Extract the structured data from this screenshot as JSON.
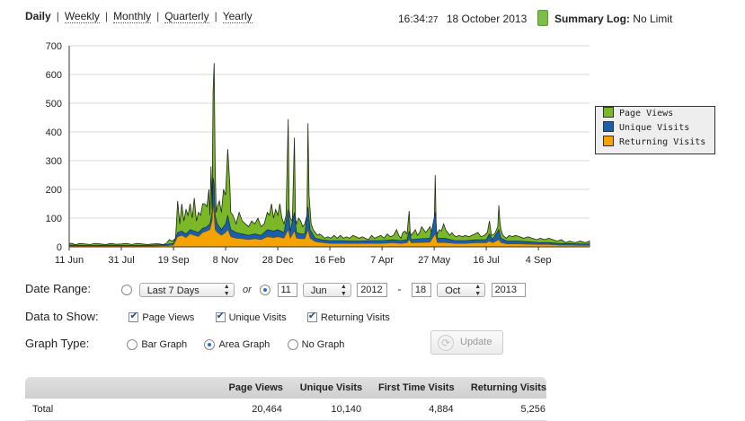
{
  "nav": {
    "periods": [
      {
        "label": "Daily",
        "active": true
      },
      {
        "label": "Weekly"
      },
      {
        "label": "Monthly"
      },
      {
        "label": "Quarterly"
      },
      {
        "label": "Yearly"
      }
    ],
    "separator": "|"
  },
  "status": {
    "time_hm": "16:34:",
    "time_sec": "27",
    "date": "18 October 2013",
    "log_label": "Summary Log:",
    "log_value": "No Limit",
    "log_indicator_color": "#7bbf4a"
  },
  "chart_data": {
    "type": "area",
    "ylim": [
      0,
      700
    ],
    "yticks": [
      "0",
      "100",
      "200",
      "300",
      "400",
      "500",
      "600",
      "700"
    ],
    "xticks": [
      "11 Jun",
      "31 Jul",
      "19 Sep",
      "8 Nov",
      "28 Dec",
      "16 Feb",
      "7 Apr",
      "27 May",
      "16 Jul",
      "4 Sep"
    ],
    "x_start": "2012-06-11",
    "x_end": "2013-10-18",
    "series": [
      {
        "name": "Page Views",
        "color": "#7ab828"
      },
      {
        "name": "Unique Visits",
        "color": "#1a5fa8"
      },
      {
        "name": "Returning Visits",
        "color": "#f5a300"
      }
    ],
    "page_views": [
      [
        0,
        12
      ],
      [
        3,
        12
      ],
      [
        6,
        7
      ],
      [
        10,
        12
      ],
      [
        15,
        10
      ],
      [
        20,
        8
      ],
      [
        25,
        12
      ],
      [
        30,
        10
      ],
      [
        35,
        8
      ],
      [
        40,
        12
      ],
      [
        45,
        9
      ],
      [
        50,
        10
      ],
      [
        55,
        12
      ],
      [
        60,
        8
      ],
      [
        65,
        12
      ],
      [
        70,
        10
      ],
      [
        75,
        8
      ],
      [
        80,
        10
      ],
      [
        85,
        11
      ],
      [
        90,
        8
      ],
      [
        93,
        12
      ],
      [
        96,
        25
      ],
      [
        99,
        20
      ],
      [
        102,
        30
      ],
      [
        104,
        160
      ],
      [
        106,
        80
      ],
      [
        108,
        150
      ],
      [
        110,
        90
      ],
      [
        112,
        130
      ],
      [
        114,
        110
      ],
      [
        116,
        150
      ],
      [
        118,
        100
      ],
      [
        120,
        170
      ],
      [
        122,
        90
      ],
      [
        124,
        120
      ],
      [
        126,
        110
      ],
      [
        128,
        150
      ],
      [
        130,
        150
      ],
      [
        132,
        140
      ],
      [
        134,
        200
      ],
      [
        135,
        110
      ],
      [
        136,
        280
      ],
      [
        137,
        130
      ],
      [
        138,
        540
      ],
      [
        139,
        640
      ],
      [
        140,
        280
      ],
      [
        141,
        120
      ],
      [
        142,
        140
      ],
      [
        144,
        160
      ],
      [
        146,
        120
      ],
      [
        148,
        200
      ],
      [
        150,
        180
      ],
      [
        152,
        340
      ],
      [
        154,
        220
      ],
      [
        155,
        120
      ],
      [
        157,
        110
      ],
      [
        160,
        80
      ],
      [
        163,
        120
      ],
      [
        166,
        90
      ],
      [
        169,
        80
      ],
      [
        172,
        70
      ],
      [
        175,
        90
      ],
      [
        178,
        80
      ],
      [
        181,
        100
      ],
      [
        184,
        70
      ],
      [
        187,
        80
      ],
      [
        190,
        120
      ],
      [
        192,
        110
      ],
      [
        194,
        150
      ],
      [
        196,
        100
      ],
      [
        198,
        130
      ],
      [
        200,
        110
      ],
      [
        202,
        150
      ],
      [
        204,
        100
      ],
      [
        206,
        80
      ],
      [
        208,
        110
      ],
      [
        210,
        445
      ],
      [
        211,
        130
      ],
      [
        212,
        100
      ],
      [
        214,
        90
      ],
      [
        216,
        380
      ],
      [
        217,
        100
      ],
      [
        218,
        80
      ],
      [
        220,
        100
      ],
      [
        222,
        90
      ],
      [
        224,
        70
      ],
      [
        226,
        80
      ],
      [
        228,
        110
      ],
      [
        229,
        430
      ],
      [
        230,
        180
      ],
      [
        232,
        80
      ],
      [
        234,
        60
      ],
      [
        236,
        50
      ],
      [
        238,
        40
      ],
      [
        240,
        45
      ],
      [
        242,
        40
      ],
      [
        245,
        30
      ],
      [
        248,
        35
      ],
      [
        251,
        30
      ],
      [
        254,
        40
      ],
      [
        257,
        30
      ],
      [
        260,
        40
      ],
      [
        263,
        30
      ],
      [
        266,
        35
      ],
      [
        269,
        30
      ],
      [
        272,
        40
      ],
      [
        275,
        35
      ],
      [
        278,
        30
      ],
      [
        281,
        35
      ],
      [
        284,
        30
      ],
      [
        287,
        25
      ],
      [
        290,
        40
      ],
      [
        293,
        30
      ],
      [
        296,
        35
      ],
      [
        299,
        40
      ],
      [
        302,
        30
      ],
      [
        305,
        45
      ],
      [
        308,
        35
      ],
      [
        311,
        40
      ],
      [
        314,
        60
      ],
      [
        316,
        40
      ],
      [
        318,
        30
      ],
      [
        320,
        50
      ],
      [
        322,
        55
      ],
      [
        324,
        45
      ],
      [
        326,
        125
      ],
      [
        327,
        50
      ],
      [
        328,
        40
      ],
      [
        330,
        50
      ],
      [
        332,
        60
      ],
      [
        334,
        40
      ],
      [
        336,
        50
      ],
      [
        338,
        70
      ],
      [
        340,
        60
      ],
      [
        342,
        50
      ],
      [
        344,
        60
      ],
      [
        346,
        70
      ],
      [
        348,
        40
      ],
      [
        350,
        60
      ],
      [
        351,
        250
      ],
      [
        352,
        60
      ],
      [
        353,
        45
      ],
      [
        355,
        60
      ],
      [
        357,
        55
      ],
      [
        359,
        80
      ],
      [
        361,
        60
      ],
      [
        363,
        50
      ],
      [
        365,
        40
      ],
      [
        367,
        50
      ],
      [
        369,
        40
      ],
      [
        371,
        35
      ],
      [
        374,
        40
      ],
      [
        377,
        35
      ],
      [
        380,
        40
      ],
      [
        383,
        35
      ],
      [
        386,
        40
      ],
      [
        389,
        45
      ],
      [
        392,
        50
      ],
      [
        395,
        35
      ],
      [
        398,
        40
      ],
      [
        401,
        50
      ],
      [
        403,
        90
      ],
      [
        405,
        40
      ],
      [
        408,
        45
      ],
      [
        411,
        70
      ],
      [
        412,
        145
      ],
      [
        413,
        90
      ],
      [
        414,
        60
      ],
      [
        416,
        40
      ],
      [
        419,
        30
      ],
      [
        422,
        40
      ],
      [
        425,
        35
      ],
      [
        428,
        40
      ],
      [
        432,
        35
      ],
      [
        436,
        30
      ],
      [
        440,
        35
      ],
      [
        444,
        30
      ],
      [
        448,
        25
      ],
      [
        452,
        30
      ],
      [
        456,
        25
      ],
      [
        460,
        30
      ],
      [
        464,
        25
      ],
      [
        468,
        20
      ],
      [
        472,
        25
      ],
      [
        476,
        15
      ],
      [
        480,
        20
      ],
      [
        485,
        15
      ],
      [
        490,
        20
      ],
      [
        495,
        15
      ],
      [
        499,
        20
      ]
    ],
    "unique_visits": [
      [
        0,
        6
      ],
      [
        20,
        5
      ],
      [
        40,
        6
      ],
      [
        60,
        5
      ],
      [
        80,
        6
      ],
      [
        93,
        8
      ],
      [
        100,
        12
      ],
      [
        104,
        50
      ],
      [
        108,
        55
      ],
      [
        112,
        45
      ],
      [
        116,
        60
      ],
      [
        120,
        55
      ],
      [
        124,
        50
      ],
      [
        128,
        65
      ],
      [
        132,
        70
      ],
      [
        135,
        80
      ],
      [
        137,
        120
      ],
      [
        138,
        240
      ],
      [
        139,
        220
      ],
      [
        140,
        110
      ],
      [
        142,
        80
      ],
      [
        146,
        60
      ],
      [
        150,
        80
      ],
      [
        152,
        110
      ],
      [
        155,
        60
      ],
      [
        160,
        50
      ],
      [
        166,
        45
      ],
      [
        172,
        40
      ],
      [
        178,
        45
      ],
      [
        184,
        40
      ],
      [
        190,
        60
      ],
      [
        196,
        55
      ],
      [
        200,
        60
      ],
      [
        206,
        50
      ],
      [
        210,
        130
      ],
      [
        212,
        55
      ],
      [
        216,
        120
      ],
      [
        218,
        50
      ],
      [
        222,
        45
      ],
      [
        226,
        45
      ],
      [
        229,
        140
      ],
      [
        231,
        60
      ],
      [
        236,
        30
      ],
      [
        242,
        25
      ],
      [
        250,
        22
      ],
      [
        260,
        22
      ],
      [
        270,
        20
      ],
      [
        280,
        20
      ],
      [
        290,
        22
      ],
      [
        300,
        22
      ],
      [
        310,
        25
      ],
      [
        318,
        22
      ],
      [
        324,
        25
      ],
      [
        326,
        55
      ],
      [
        328,
        25
      ],
      [
        336,
        28
      ],
      [
        346,
        30
      ],
      [
        351,
        120
      ],
      [
        353,
        30
      ],
      [
        360,
        30
      ],
      [
        370,
        22
      ],
      [
        380,
        22
      ],
      [
        390,
        25
      ],
      [
        400,
        25
      ],
      [
        403,
        45
      ],
      [
        406,
        25
      ],
      [
        412,
        60
      ],
      [
        414,
        30
      ],
      [
        420,
        20
      ],
      [
        430,
        20
      ],
      [
        440,
        18
      ],
      [
        450,
        15
      ],
      [
        460,
        15
      ],
      [
        470,
        12
      ],
      [
        480,
        12
      ],
      [
        490,
        10
      ],
      [
        499,
        10
      ]
    ],
    "returning_visits": [
      [
        0,
        3
      ],
      [
        20,
        3
      ],
      [
        40,
        3
      ],
      [
        60,
        3
      ],
      [
        80,
        3
      ],
      [
        93,
        4
      ],
      [
        100,
        6
      ],
      [
        104,
        35
      ],
      [
        108,
        40
      ],
      [
        112,
        32
      ],
      [
        116,
        45
      ],
      [
        120,
        40
      ],
      [
        124,
        36
      ],
      [
        128,
        50
      ],
      [
        132,
        55
      ],
      [
        135,
        60
      ],
      [
        137,
        90
      ],
      [
        138,
        150
      ],
      [
        139,
        110
      ],
      [
        140,
        60
      ],
      [
        142,
        50
      ],
      [
        146,
        40
      ],
      [
        150,
        50
      ],
      [
        152,
        60
      ],
      [
        155,
        35
      ],
      [
        160,
        30
      ],
      [
        166,
        28
      ],
      [
        172,
        25
      ],
      [
        178,
        28
      ],
      [
        184,
        25
      ],
      [
        190,
        35
      ],
      [
        196,
        32
      ],
      [
        200,
        35
      ],
      [
        206,
        30
      ],
      [
        210,
        60
      ],
      [
        212,
        30
      ],
      [
        216,
        55
      ],
      [
        218,
        30
      ],
      [
        222,
        28
      ],
      [
        226,
        28
      ],
      [
        229,
        60
      ],
      [
        231,
        30
      ],
      [
        236,
        18
      ],
      [
        242,
        15
      ],
      [
        250,
        12
      ],
      [
        260,
        12
      ],
      [
        270,
        12
      ],
      [
        280,
        12
      ],
      [
        290,
        12
      ],
      [
        300,
        12
      ],
      [
        310,
        14
      ],
      [
        318,
        12
      ],
      [
        324,
        14
      ],
      [
        326,
        25
      ],
      [
        328,
        14
      ],
      [
        336,
        15
      ],
      [
        346,
        16
      ],
      [
        351,
        45
      ],
      [
        353,
        15
      ],
      [
        360,
        15
      ],
      [
        370,
        12
      ],
      [
        380,
        12
      ],
      [
        390,
        14
      ],
      [
        400,
        14
      ],
      [
        403,
        20
      ],
      [
        406,
        14
      ],
      [
        412,
        25
      ],
      [
        414,
        15
      ],
      [
        420,
        10
      ],
      [
        430,
        10
      ],
      [
        440,
        9
      ],
      [
        450,
        8
      ],
      [
        460,
        8
      ],
      [
        470,
        6
      ],
      [
        480,
        6
      ],
      [
        490,
        5
      ],
      [
        499,
        5
      ]
    ]
  },
  "legend": [
    "Page Views",
    "Unique Visits",
    "Returning Visits"
  ],
  "form": {
    "date_range_label": "Date Range:",
    "preset_value": "Last 7 Days",
    "or_label": "or",
    "from_day": "11",
    "from_month": "Jun",
    "from_year": "2012",
    "dash": "-",
    "to_day": "18",
    "to_month": "Oct",
    "to_year": "2013",
    "data_label": "Data to Show:",
    "page_views": "Page Views",
    "unique_visits": "Unique Visits",
    "returning_visits": "Returning Visits",
    "graph_type_label": "Graph Type:",
    "bar_graph": "Bar Graph",
    "area_graph": "Area Graph",
    "no_graph": "No Graph",
    "update": "Update"
  },
  "table": {
    "headers": [
      "",
      "Page Views",
      "Unique Visits",
      "First Time Visits",
      "Returning Visits"
    ],
    "rows": [
      [
        "Total",
        "20,464",
        "10,140",
        "4,884",
        "5,256"
      ]
    ]
  }
}
